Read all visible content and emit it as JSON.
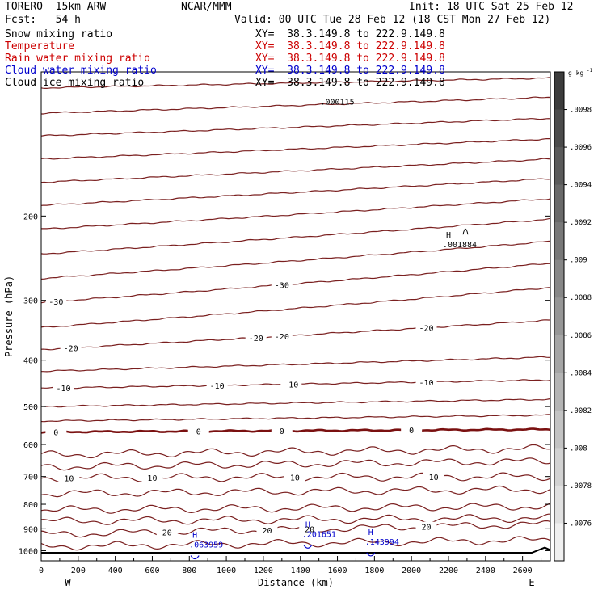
{
  "header": {
    "model": "TORERO  15km ARW",
    "center": "NCAR/MMM",
    "init": "Init: 18 UTC Sat 25 Feb 12",
    "fcst": "Fcst:   54 h",
    "valid": "Valid: 00 UTC Tue 28 Feb 12 (18 CST Mon 27 Feb 12)"
  },
  "legend": [
    {
      "name": "Snow mixing ratio",
      "xy": "XY=  38.3.149.8 to 222.9.149.8",
      "color": "#000000"
    },
    {
      "name": "Temperature",
      "xy": "XY=  38.3.149.8 to 222.9.149.8",
      "color": "#cc0000"
    },
    {
      "name": "Rain water mixing ratio",
      "xy": "XY=  38.3.149.8 to 222.9.149.8",
      "color": "#cc0000"
    },
    {
      "name": "Cloud water mixing ratio",
      "xy": "XY=  38.3.149.8 to 222.9.149.8",
      "color": "#0000cc"
    },
    {
      "name": "Cloud ice mixing ratio",
      "xy": "XY=  38.3.149.8 to 222.9.149.8",
      "color": "#000000"
    }
  ],
  "colors": {
    "isotherm": "#7a1f1f",
    "zero_isotherm": "#7a1010",
    "cloud_water": "#0000cc",
    "frame": "#000000"
  },
  "chart_data": {
    "type": "line",
    "title": "",
    "xlabel": "Distance (km)",
    "ylabel": "Pressure (hPa)",
    "xlim": [
      0,
      2750
    ],
    "ylim": [
      1050,
      100
    ],
    "yscale": "log",
    "x_ticks": [
      0,
      200,
      400,
      600,
      800,
      1000,
      1200,
      1400,
      1600,
      1800,
      2000,
      2200,
      2400,
      2600
    ],
    "y_ticks": [
      200,
      300,
      400,
      500,
      600,
      700,
      800,
      900,
      1000
    ],
    "x_end_labels": {
      "left": "W",
      "right": "E"
    },
    "isotherms": [
      {
        "p_left": 108,
        "p_right": 103
      },
      {
        "p_left": 122,
        "p_right": 113
      },
      {
        "p_left": 136,
        "p_right": 125
      },
      {
        "p_left": 152,
        "p_right": 138
      },
      {
        "p_left": 170,
        "p_right": 152
      },
      {
        "p_left": 190,
        "p_right": 167
      },
      {
        "p_left": 213,
        "p_right": 184
      },
      {
        "p_left": 240,
        "p_right": 203
      },
      {
        "p_left": 270,
        "p_right": 226
      },
      {
        "p_left": 303,
        "p_right": 251,
        "label": "-30",
        "label_x": [
          80,
          1300
        ]
      },
      {
        "p_left": 342,
        "p_right": 282
      },
      {
        "p_left": 380,
        "p_right": 330,
        "label": "-20",
        "label_x": [
          160,
          1160,
          1300,
          2080
        ]
      },
      {
        "p_left": 422,
        "p_right": 394
      },
      {
        "p_left": 458,
        "p_right": 440,
        "label": "-10",
        "label_x": [
          120,
          950,
          1350,
          2080
        ]
      },
      {
        "p_left": 500,
        "p_right": 483
      },
      {
        "p_left": 536,
        "p_right": 521
      },
      {
        "p_left": 565,
        "p_right": 558,
        "label": "0",
        "label_x": [
          80,
          850,
          1300,
          2000
        ],
        "bold": true
      },
      {
        "p_left": 630,
        "p_right": 612
      },
      {
        "p_left": 668,
        "p_right": 650
      },
      {
        "p_left": 705,
        "p_right": 700,
        "label": "10",
        "label_x": [
          150,
          600,
          1370,
          2120
        ]
      },
      {
        "p_left": 760,
        "p_right": 745
      },
      {
        "p_left": 822,
        "p_right": 808
      },
      {
        "p_left": 868,
        "p_right": 855
      },
      {
        "p_left": 925,
        "p_right": 880,
        "label": "20",
        "label_x": [
          680,
          1220,
          1450,
          2080
        ]
      },
      {
        "p_left": 980,
        "p_right": 950
      }
    ],
    "cloud_water_maxima": [
      {
        "label": "H",
        "value": ".063959",
        "x": 830,
        "p": 940
      },
      {
        "label": "H",
        "value": ".201651",
        "x": 1440,
        "p": 893
      },
      {
        "label": "H",
        "value": ".143994",
        "x": 1780,
        "p": 927
      }
    ],
    "snow_maxima": [
      {
        "label": "H",
        "value": ".001884",
        "x": 2200,
        "p": 222
      }
    ],
    "annotations": [
      {
        "text": ".000115",
        "x": 1600,
        "p": 117
      }
    ],
    "colorbar": {
      "unit": "g kg",
      "unit_sup": "-1",
      "ticks": [
        ".0098",
        ".0096",
        ".0094",
        ".0092",
        ".009",
        ".0088",
        ".0086",
        ".0084",
        ".0082",
        ".008",
        ".0078",
        ".0076"
      ]
    }
  }
}
